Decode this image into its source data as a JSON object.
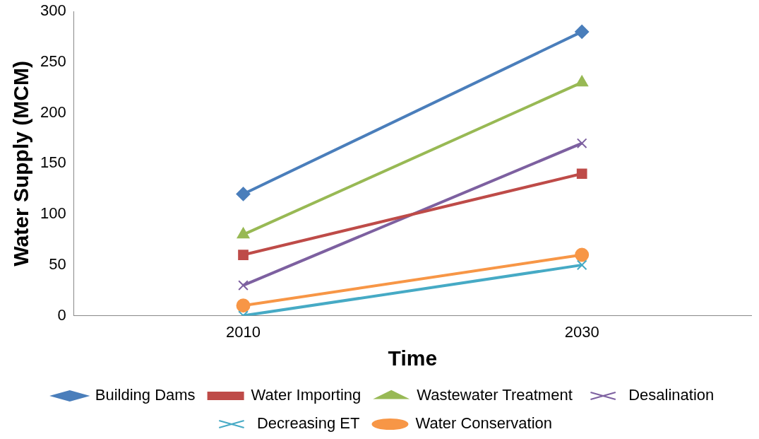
{
  "chart_data": {
    "type": "line",
    "xlabel": "Time",
    "ylabel": "Water Supply (MCM)",
    "categories": [
      "2010",
      "2030"
    ],
    "ylim": [
      0,
      300
    ],
    "yticks": [
      0,
      50,
      100,
      150,
      200,
      250,
      300
    ],
    "grid": false,
    "legend": "bottom",
    "line_style": "solid",
    "series": [
      {
        "name": "Building Dams",
        "color": "#4a7ebb",
        "marker": "diamond",
        "values": [
          120,
          280
        ]
      },
      {
        "name": "Water Importing",
        "color": "#be4b48",
        "marker": "square",
        "values": [
          60,
          140
        ]
      },
      {
        "name": "Wastewater Treatment",
        "color": "#98b954",
        "marker": "triangle",
        "values": [
          80,
          230
        ]
      },
      {
        "name": "Desalination",
        "color": "#7d60a0",
        "marker": "cross",
        "values": [
          30,
          170
        ]
      },
      {
        "name": "Decreasing ET",
        "color": "#46aac5",
        "marker": "cross",
        "values": [
          0,
          50
        ]
      },
      {
        "name": "Water Conservation",
        "color": "#f79646",
        "marker": "circle",
        "values": [
          10,
          60
        ]
      }
    ]
  }
}
